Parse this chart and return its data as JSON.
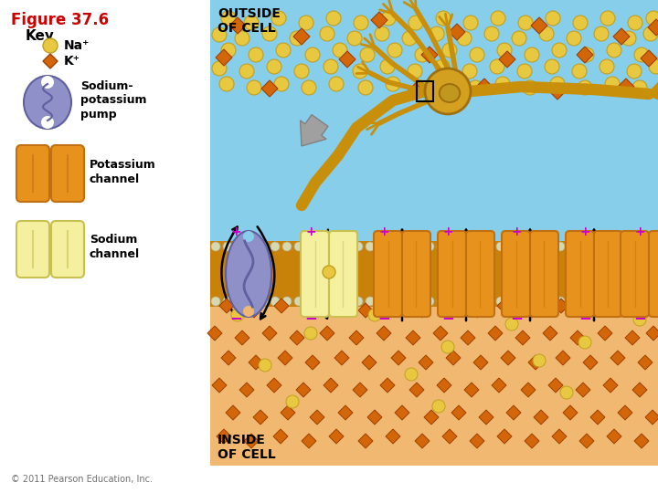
{
  "title": "Figure 37.6",
  "title_color": "#cc0000",
  "bg_color": "#ffffff",
  "key_title": "Key",
  "na_label": "Na⁺",
  "k_label": "K⁺",
  "na_color": "#e8c840",
  "na_edge": "#c0a020",
  "k_color": "#d4660a",
  "k_edge": "#a04000",
  "outside_bg": "#87ceeb",
  "inside_bg": "#f0b870",
  "membrane_color": "#c8820a",
  "bead_color": "#c8c8a0",
  "pump_fill": "#9090c8",
  "pump_edge": "#6060a0",
  "channel_orange": "#e8921e",
  "channel_orange_edge": "#c07010",
  "channel_yellow": "#f5f0a0",
  "channel_yellow_edge": "#c8c050",
  "plus_color": "#cc00cc",
  "minus_color": "#cc00cc",
  "outside_label": "OUTSIDE\nOF CELL",
  "inside_label": "INSIDE\nOF CELL",
  "sodium_pump_label": "Sodium-\npotassium\npump",
  "potassium_channel_label": "Potassium\nchannel",
  "sodium_channel_label": "Sodium\nchannel",
  "copyright": "© 2011 Pearson Education, Inc.",
  "neuron_color": "#d4a020",
  "neuron_edge": "#a07010",
  "axon_color": "#c8900a",
  "arrow_gray": "#a0a0a0",
  "arrow_gray_edge": "#808080"
}
